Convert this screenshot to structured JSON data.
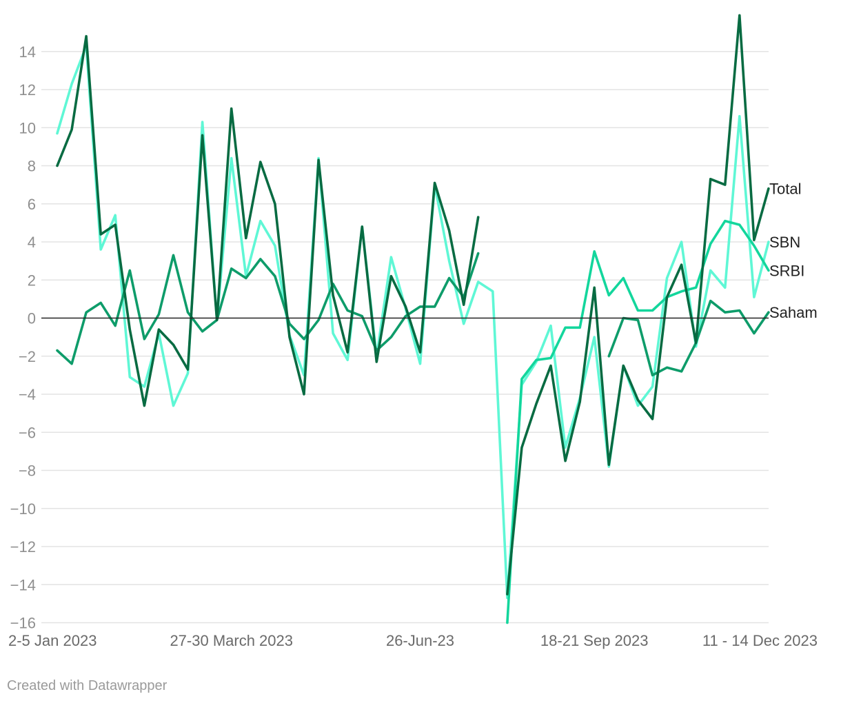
{
  "footer": {
    "credit": "Created with Datawrapper"
  },
  "chart_data": {
    "type": "line",
    "title": "",
    "xlabel": "",
    "ylabel": "",
    "ylim": [
      -16,
      16
    ],
    "yticks": [
      14,
      12,
      10,
      8,
      6,
      4,
      2,
      0,
      -2,
      -4,
      -6,
      -8,
      -10,
      -12,
      -14,
      -16
    ],
    "ytick_labels": [
      "14",
      "12",
      "10",
      "8",
      "6",
      "4",
      "2",
      "0",
      "−2",
      "−4",
      "−6",
      "−8",
      "−10",
      "−12",
      "−14",
      "−16"
    ],
    "grid": true,
    "legend": "labels at right end of lines",
    "x_tick_labels": [
      {
        "index": 0,
        "label": "2-5 Jan 2023"
      },
      {
        "index": 12,
        "label": "27-30 March 2023"
      },
      {
        "index": 25,
        "label": "26-Jun-23"
      },
      {
        "index": 37,
        "label": "18-21 Sep 2023"
      },
      {
        "index": 49,
        "label": "11 - 14 Dec 2023"
      }
    ],
    "series": [
      {
        "name": "SBN",
        "color": "#5ff7d5",
        "values": [
          9.7,
          12.3,
          14.3,
          3.6,
          5.4,
          -3.1,
          -3.6,
          -0.8,
          -4.6,
          -2.9,
          10.3,
          -0.1,
          8.4,
          2.2,
          5.1,
          3.8,
          -0.9,
          -3.0,
          8.4,
          -0.8,
          -2.2,
          4.8,
          -2.0,
          3.2,
          0.5,
          -2.4,
          7.0,
          3.0,
          -0.3,
          1.9,
          1.4,
          -14.7,
          -3.5,
          -2.3,
          -0.4,
          -6.8,
          -4.2,
          -1.0,
          -7.8,
          -2.5,
          -4.6,
          -3.6,
          2.1,
          4.0,
          -1.5,
          2.5,
          1.6,
          10.6,
          1.1,
          4.0
        ]
      },
      {
        "name": "Saham",
        "color": "#0e9c6a",
        "values": [
          -1.7,
          -2.4,
          0.3,
          0.8,
          -0.4,
          2.5,
          -1.1,
          0.2,
          3.3,
          0.3,
          -0.7,
          -0.1,
          2.6,
          2.1,
          3.1,
          2.2,
          -0.3,
          -1.1,
          -0.1,
          1.8,
          0.4,
          0.1,
          -1.7,
          -1.0,
          0.1,
          0.6,
          0.6,
          2.1,
          1.1,
          3.4,
          null,
          null,
          null,
          null,
          null,
          null,
          null,
          null,
          -2.0,
          0.0,
          -0.1,
          -3.0,
          -2.6,
          -2.8,
          -1.3,
          0.9,
          0.3,
          0.4,
          -0.8,
          0.3
        ]
      },
      {
        "name": "SRBI",
        "color": "#13d69c",
        "values": [
          null,
          null,
          null,
          null,
          null,
          null,
          null,
          null,
          null,
          null,
          null,
          null,
          null,
          null,
          null,
          null,
          null,
          null,
          null,
          null,
          null,
          null,
          null,
          null,
          null,
          null,
          null,
          null,
          null,
          null,
          null,
          -16.0,
          -3.2,
          -2.2,
          -2.1,
          -0.5,
          -0.5,
          3.5,
          1.2,
          2.1,
          0.4,
          0.4,
          1.1,
          1.4,
          1.6,
          3.9,
          5.1,
          4.9,
          3.8,
          2.5
        ]
      },
      {
        "name": "Total",
        "color": "#086b42",
        "values": [
          8.0,
          9.9,
          14.8,
          4.4,
          4.9,
          -0.6,
          -4.6,
          -0.6,
          -1.4,
          -2.7,
          9.6,
          -0.1,
          11.0,
          4.2,
          8.2,
          6.0,
          -1.0,
          -4.0,
          8.3,
          1.2,
          -1.8,
          4.8,
          -2.3,
          2.2,
          0.6,
          -1.8,
          7.1,
          4.6,
          0.7,
          5.3,
          null,
          -14.5,
          -6.8,
          -4.5,
          -2.5,
          -7.5,
          -4.4,
          1.6,
          -7.7,
          -2.5,
          -4.3,
          -5.3,
          1.1,
          2.8,
          -1.3,
          7.3,
          7.0,
          15.9,
          4.1,
          6.8
        ]
      }
    ]
  }
}
